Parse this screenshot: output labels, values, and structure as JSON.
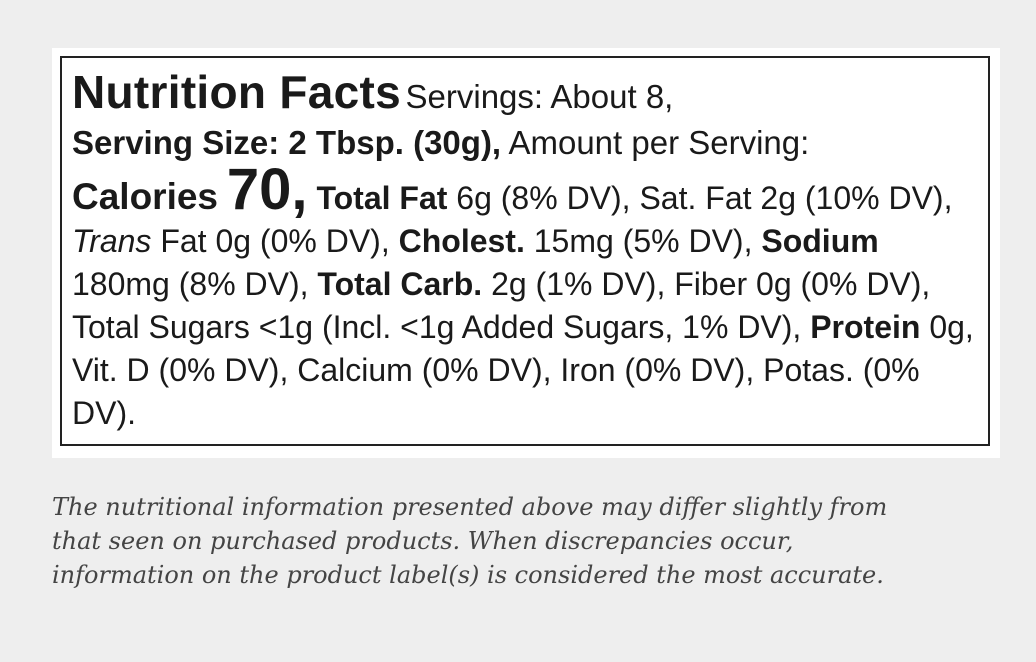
{
  "label": {
    "title": "Nutrition Facts",
    "servings": "Servings: About 8,",
    "serving_size": "Serving Size: 2 Tbsp. (30g),",
    "amount_per_serving": "Amount per Serving:",
    "calories_label": "Calories",
    "calories_value": "70,",
    "body": [
      {
        "text": "Total Fat",
        "style": "bold"
      },
      {
        "text": "6g (8% DV), Sat. Fat 2g (10% DV),",
        "style": "normal"
      },
      {
        "text": "Trans",
        "style": "italic"
      },
      {
        "text": "Fat 0g (0% DV),",
        "style": "normal"
      },
      {
        "text": "Cholest.",
        "style": "bold"
      },
      {
        "text": "15mg (5% DV),",
        "style": "normal"
      },
      {
        "text": "Sodium",
        "style": "bold"
      },
      {
        "text": "180mg (8% DV),",
        "style": "normal"
      },
      {
        "text": "Total Carb.",
        "style": "bold"
      },
      {
        "text": "2g (1% DV), Fiber 0g (0% DV), Total Sugars <1g (Incl. <1g Added Sugars, 1% DV),",
        "style": "normal"
      },
      {
        "text": "Protein",
        "style": "bold"
      },
      {
        "text": "0g, Vit. D (0% DV), Calcium (0% DV), Iron (0% DV), Potas. (0% DV).",
        "style": "normal"
      }
    ]
  },
  "disclaimer": {
    "lines": [
      "The nutritional information presented above may differ slightly from",
      "that seen on purchased products. When discrepancies occur,",
      "information on the product label(s) is considered the most accurate."
    ]
  }
}
